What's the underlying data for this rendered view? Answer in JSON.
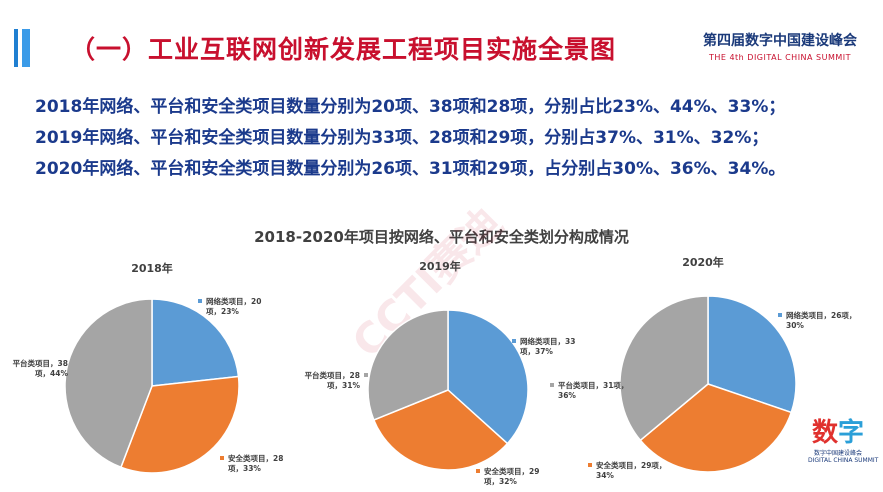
{
  "title": "（一）工业互联网创新发展工程项目实施全景图",
  "logo": {
    "cn": "第四届数字中国建设峰会",
    "en": "THE 4th DIGITAL CHINA SUMMIT"
  },
  "summary": [
    "2018年网络、平台和安全类项目数量分别为20项、38项和28项，分别占比23%、44%、33%；",
    "2019年网络、平台和安全类项目数量分别为33项、28项和29项，分别占37%、31%、32%；",
    "2020年网络、平台和安全类项目数量分别为26项、31项和29项，占分别占30%、36%、34%。"
  ],
  "watermark": "CCTI赛迪",
  "deco": {
    "text": "数字中国建设峰会",
    "sub": "DIGITAL CHINA SUMMIT"
  },
  "colors": {
    "network": "#5b9bd5",
    "security": "#ed7d31",
    "platform": "#a5a5a5"
  },
  "chart_data": {
    "type": "pie",
    "title": "2018-2020年项目按网络、平台和安全类划分构成情况",
    "charts": [
      {
        "year": "2018年",
        "slices": [
          {
            "key": "network",
            "name": "网络类项目",
            "value": 20,
            "percent": "23%",
            "label1": "网络类项目，20",
            "label2": "项，23%"
          },
          {
            "key": "security",
            "name": "安全类项目",
            "value": 28,
            "percent": "33%",
            "label1": "安全类项目，28",
            "label2": "项，33%"
          },
          {
            "key": "platform",
            "name": "平台类项目",
            "value": 38,
            "percent": "44%",
            "label1": "平台类项目，38",
            "label2": "项，44%"
          }
        ]
      },
      {
        "year": "2019年",
        "slices": [
          {
            "key": "network",
            "name": "网络类项目",
            "value": 33,
            "percent": "37%",
            "label1": "网络类项目，33",
            "label2": "项，37%"
          },
          {
            "key": "security",
            "name": "安全类项目",
            "value": 29,
            "percent": "32%",
            "label1": "安全类项目，29",
            "label2": "项，32%"
          },
          {
            "key": "platform",
            "name": "平台类项目",
            "value": 28,
            "percent": "31%",
            "label1": "平台类项目，28",
            "label2": "项，31%"
          }
        ]
      },
      {
        "year": "2020年",
        "slices": [
          {
            "key": "network",
            "name": "网络类项目",
            "value": 26,
            "percent": "30%",
            "label1": "网络类项目，26项，",
            "label2": "30%"
          },
          {
            "key": "security",
            "name": "安全类项目",
            "value": 29,
            "percent": "34%",
            "label1": "安全类项目，29项，",
            "label2": "34%"
          },
          {
            "key": "platform",
            "name": "平台类项目",
            "value": 31,
            "percent": "36%",
            "label1": "平台类项目，31项，",
            "label2": "36%"
          }
        ]
      }
    ]
  }
}
